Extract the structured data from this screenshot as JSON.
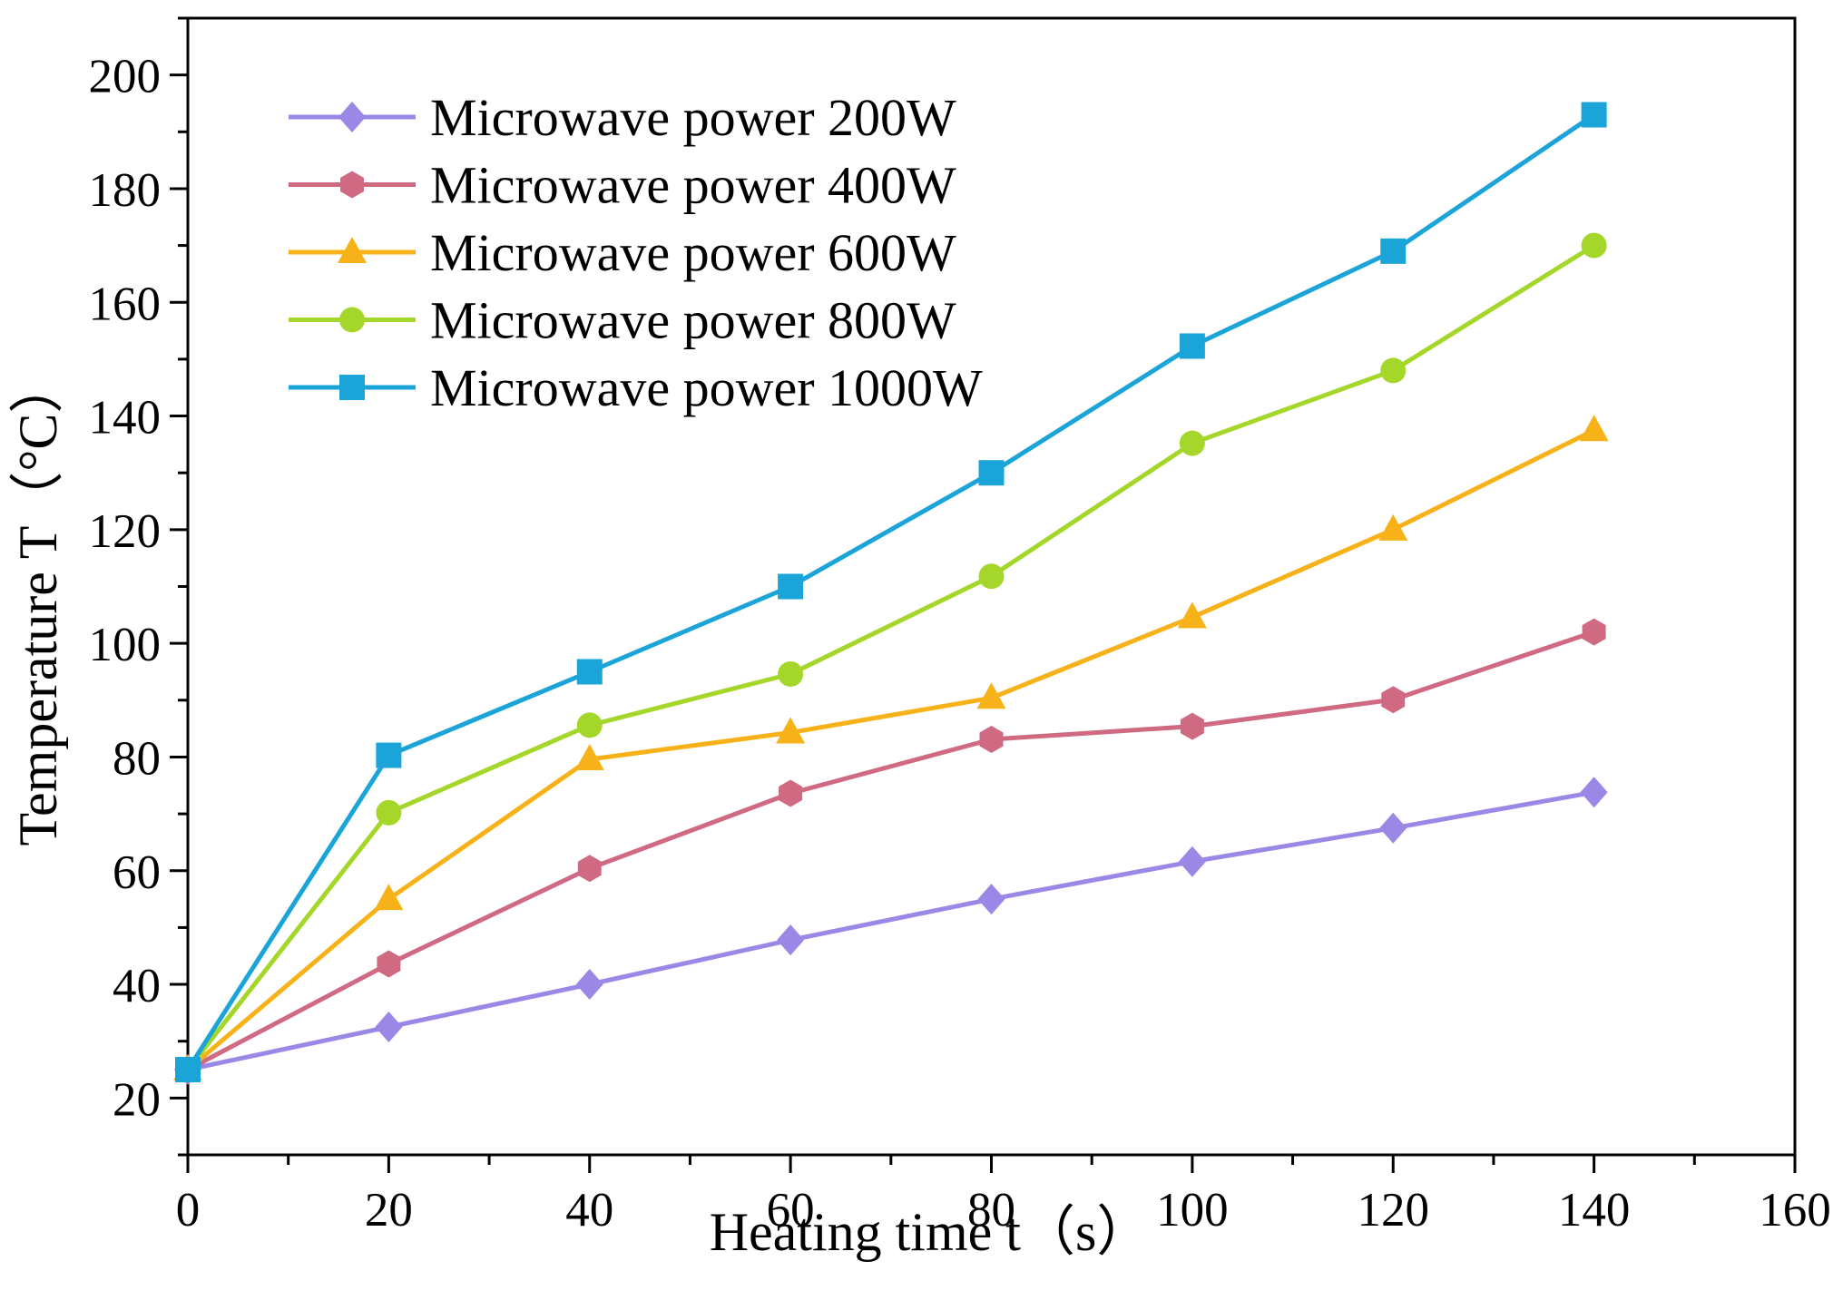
{
  "chart_data": {
    "type": "line",
    "title": "",
    "xlabel": "Heating time t（s）",
    "ylabel": "Temperature T（°C）",
    "xlim": [
      0,
      160
    ],
    "ylim": [
      10,
      210
    ],
    "x_ticks": [
      0,
      20,
      40,
      60,
      80,
      100,
      120,
      140,
      160
    ],
    "y_ticks": [
      20,
      40,
      60,
      80,
      100,
      120,
      140,
      160,
      180,
      200
    ],
    "grid": false,
    "legend_position": "top-left",
    "x": [
      0,
      20,
      40,
      60,
      80,
      100,
      120,
      140
    ],
    "series": [
      {
        "name": "Microwave power 200W",
        "color": "#9b87e6",
        "marker": "diamond",
        "values": [
          25,
          32.5,
          40,
          47.8,
          55,
          61.6,
          67.5,
          73.8
        ]
      },
      {
        "name": "Microwave power 400W",
        "color": "#d06a82",
        "marker": "hexagon",
        "values": [
          25,
          43.6,
          60.4,
          73.6,
          83.1,
          85.4,
          90.1,
          102
        ]
      },
      {
        "name": "Microwave power 600W",
        "color": "#f7b21a",
        "marker": "triangle",
        "values": [
          25,
          55,
          79.6,
          84.3,
          90.4,
          104.6,
          120,
          137.5
        ]
      },
      {
        "name": "Microwave power 800W",
        "color": "#a5d72a",
        "marker": "circle",
        "values": [
          25,
          70.2,
          85.6,
          94.6,
          111.8,
          135.2,
          148,
          170
        ]
      },
      {
        "name": "Microwave power 1000W",
        "color": "#1aa4d8",
        "marker": "square",
        "values": [
          25,
          80.3,
          95,
          110,
          130,
          152.3,
          169,
          193
        ]
      }
    ]
  }
}
